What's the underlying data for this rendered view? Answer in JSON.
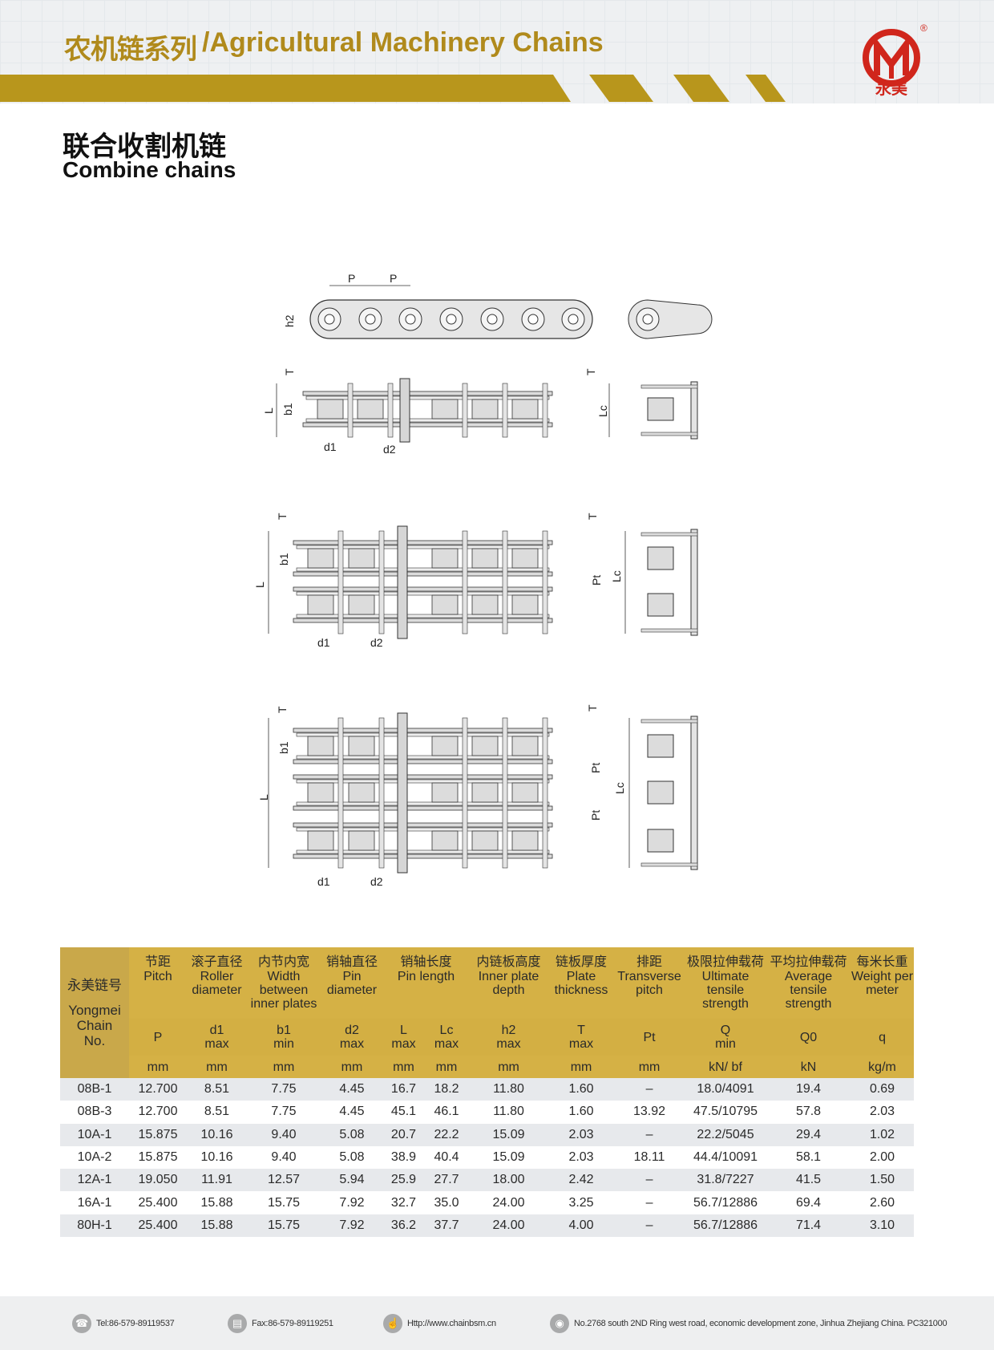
{
  "header": {
    "title_cn": "农机链系列",
    "title_en": "/Agricultural Machinery Chains",
    "brand_cn": "永美",
    "registered": "®",
    "colors": {
      "gold": "#b8961c",
      "logo_red": "#d0261c"
    }
  },
  "section": {
    "title_cn": "联合收割机链",
    "title_en": "Combine chains"
  },
  "diagrams": {
    "single": {
      "p1": "P",
      "p2": "P",
      "h2": "h2",
      "t_left": "T",
      "l": "L",
      "b1": "b1",
      "d1": "d1",
      "d2": "d2",
      "t_right": "T",
      "lc": "Lc"
    },
    "double": {
      "t_left": "T",
      "b1": "b1",
      "l": "L",
      "d1": "d1",
      "d2": "d2",
      "t_right": "T",
      "pt": "Pt",
      "lc": "Lc"
    },
    "triple": {
      "t_left": "T",
      "b1": "b1",
      "l": "L",
      "d1": "d1",
      "d2": "d2",
      "t_right": "T",
      "pt1": "Pt",
      "pt2": "Pt",
      "lc": "Lc"
    }
  },
  "table": {
    "chain_header": {
      "cn": "永美链号",
      "en": "Yongmei Chain No."
    },
    "columns": [
      {
        "cn": "节距",
        "en": "Pitch",
        "sym": "P",
        "sub": "",
        "unit": "mm",
        "span": 1
      },
      {
        "cn": "滚子直径",
        "en": "Roller diameter",
        "sym": "d1",
        "sub": "max",
        "unit": "mm",
        "span": 1
      },
      {
        "cn": "内节内宽",
        "en": "Width between inner plates",
        "sym": "b1",
        "sub": "min",
        "unit": "mm",
        "span": 1
      },
      {
        "cn": "销轴直径",
        "en": "Pin diameter",
        "sym": "d2",
        "sub": "max",
        "unit": "mm",
        "span": 1
      },
      {
        "cn": "销轴长度",
        "en": "Pin length",
        "sym": "L",
        "sub": "max",
        "unit": "mm",
        "span": 2,
        "sym2": "Lc",
        "sub2": "max",
        "unit2": "mm"
      },
      {
        "cn": "内链板高度",
        "en": "Inner plate depth",
        "sym": "h2",
        "sub": "max",
        "unit": "mm",
        "span": 1
      },
      {
        "cn": "链板厚度",
        "en": "Plate thickness",
        "sym": "T",
        "sub": "max",
        "unit": "mm",
        "span": 1
      },
      {
        "cn": "排距",
        "en": "Transverse pitch",
        "sym": "Pt",
        "sub": "",
        "unit": "mm",
        "span": 1
      },
      {
        "cn": "极限拉伸载荷",
        "en": "Ultimate tensile strength",
        "sym": "Q",
        "sub": "min",
        "unit": "kN/ bf",
        "span": 1
      },
      {
        "cn": "平均拉伸载荷",
        "en": "Average tensile strength",
        "sym": "Q0",
        "sub": "",
        "unit": "kN",
        "span": 1
      },
      {
        "cn": "每米长重",
        "en": "Weight per meter",
        "sym": "q",
        "sub": "",
        "unit": "kg/m",
        "span": 1
      }
    ],
    "rows": [
      [
        "08B-1",
        "12.700",
        "8.51",
        "7.75",
        "4.45",
        "16.7",
        "18.2",
        "11.80",
        "1.60",
        "–",
        "18.0/4091",
        "19.4",
        "0.69"
      ],
      [
        "08B-3",
        "12.700",
        "8.51",
        "7.75",
        "4.45",
        "45.1",
        "46.1",
        "11.80",
        "1.60",
        "13.92",
        "47.5/10795",
        "57.8",
        "2.03"
      ],
      [
        "10A-1",
        "15.875",
        "10.16",
        "9.40",
        "5.08",
        "20.7",
        "22.2",
        "15.09",
        "2.03",
        "–",
        "22.2/5045",
        "29.4",
        "1.02"
      ],
      [
        "10A-2",
        "15.875",
        "10.16",
        "9.40",
        "5.08",
        "38.9",
        "40.4",
        "15.09",
        "2.03",
        "18.11",
        "44.4/10091",
        "58.1",
        "2.00"
      ],
      [
        "12A-1",
        "19.050",
        "11.91",
        "12.57",
        "5.94",
        "25.9",
        "27.7",
        "18.00",
        "2.42",
        "–",
        "31.8/7227",
        "41.5",
        "1.50"
      ],
      [
        "16A-1",
        "25.400",
        "15.88",
        "15.75",
        "7.92",
        "32.7",
        "35.0",
        "24.00",
        "3.25",
        "–",
        "56.7/12886",
        "69.4",
        "2.60"
      ],
      [
        "80H-1",
        "25.400",
        "15.88",
        "15.75",
        "7.92",
        "36.2",
        "37.7",
        "24.00",
        "4.00",
        "–",
        "56.7/12886",
        "71.4",
        "3.10"
      ]
    ],
    "colors": {
      "header_gold": "#d5b145",
      "stripe": "#e7e9ec"
    }
  },
  "footer": {
    "tel": "Tel:86-579-89119537",
    "fax": "Fax:86-579-89119251",
    "web": "Http://www.chainbsm.cn",
    "address": "No.2768 south 2ND Ring west road, economic development zone, Jinhua Zhejiang China. PC321000",
    "icons": [
      "phone-icon",
      "fax-icon",
      "web-icon",
      "location-pin-icon"
    ]
  }
}
